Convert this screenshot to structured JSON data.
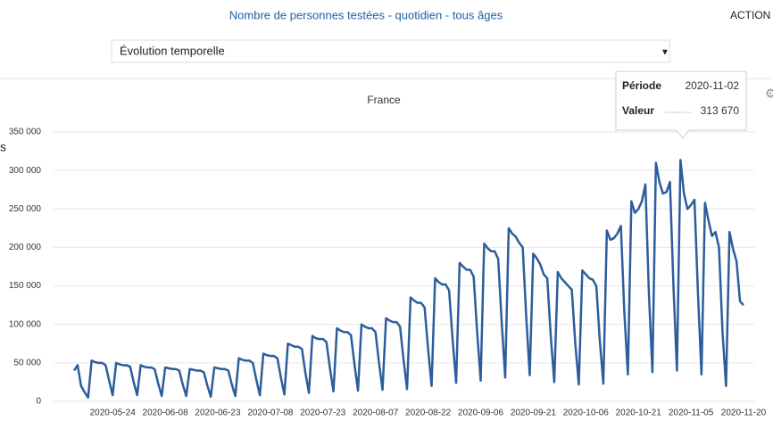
{
  "header": {
    "title": "Nombre de personnes testées - quotidien - tous âges",
    "action": "ACTION"
  },
  "dropdown": {
    "selected": "Évolution temporelle"
  },
  "side_text": "s",
  "tooltip": {
    "period_label": "Période",
    "period": "2020-11-02",
    "value_label": "Valeur",
    "value": "313 670"
  },
  "chart_data": {
    "type": "line",
    "title": "France",
    "color": "#2c5d9c",
    "grid": true,
    "ylim": [
      0,
      350000
    ],
    "yticks": [
      0,
      {
        "value": 50000,
        "label": "50 000"
      },
      {
        "value": 100000,
        "label": "100 000"
      },
      {
        "value": 150000,
        "label": "150 000"
      },
      {
        "value": 200000,
        "label": "200 000"
      },
      {
        "value": 250000,
        "label": "250 000"
      },
      {
        "value": 300000,
        "label": "300 000"
      },
      {
        "value": 350000,
        "label": "350 000"
      }
    ],
    "categories": [
      null,
      null,
      null,
      null,
      null,
      null,
      null,
      null,
      null,
      null,
      null,
      "2020-05-24",
      null,
      null,
      null,
      null,
      null,
      null,
      null,
      null,
      null,
      null,
      null,
      null,
      null,
      null,
      "2020-06-08",
      null,
      null,
      null,
      null,
      null,
      null,
      null,
      null,
      null,
      null,
      null,
      null,
      null,
      null,
      "2020-06-23",
      null,
      null,
      null,
      null,
      null,
      null,
      null,
      null,
      null,
      null,
      null,
      null,
      null,
      null,
      "2020-07-08",
      null,
      null,
      null,
      null,
      null,
      null,
      null,
      null,
      null,
      null,
      null,
      null,
      null,
      null,
      "2020-07-23",
      null,
      null,
      null,
      null,
      null,
      null,
      null,
      null,
      null,
      null,
      null,
      null,
      null,
      null,
      "2020-08-07",
      null,
      null,
      null,
      null,
      null,
      null,
      null,
      null,
      null,
      null,
      null,
      null,
      null,
      null,
      "2020-08-22",
      null,
      null,
      null,
      null,
      null,
      null,
      null,
      null,
      null,
      null,
      null,
      null,
      null,
      null,
      "2020-09-06",
      null,
      null,
      null,
      null,
      null,
      null,
      null,
      null,
      null,
      null,
      null,
      null,
      null,
      null,
      "2020-09-21",
      null,
      null,
      null,
      null,
      null,
      null,
      null,
      null,
      null,
      null,
      null,
      null,
      null,
      null,
      "2020-10-06",
      null,
      null,
      null,
      null,
      null,
      null,
      null,
      null,
      null,
      null,
      null,
      null,
      null,
      null,
      "2020-10-21",
      null,
      null,
      null,
      null,
      null,
      null,
      null,
      null,
      null,
      null,
      null,
      null,
      null,
      null,
      "2020-11-05",
      null,
      null,
      null,
      null,
      null,
      null,
      null,
      null,
      null,
      null,
      null,
      null,
      null,
      null,
      "2020-11-20"
    ],
    "values": [
      40000,
      47000,
      20000,
      12000,
      5000,
      53000,
      51000,
      50000,
      50000,
      47000,
      27000,
      8000,
      50000,
      48000,
      47000,
      47000,
      45000,
      25000,
      8000,
      47000,
      45000,
      44000,
      44000,
      42000,
      23000,
      7000,
      44000,
      43000,
      42000,
      42000,
      40000,
      22000,
      7000,
      42000,
      41000,
      40000,
      40000,
      38000,
      21000,
      6000,
      44000,
      43000,
      42000,
      42000,
      40000,
      22000,
      7000,
      56000,
      54000,
      53000,
      53000,
      50000,
      28000,
      8000,
      62000,
      60000,
      59000,
      59000,
      56000,
      31000,
      9000,
      75000,
      73000,
      71000,
      71000,
      68000,
      37000,
      11000,
      85000,
      82000,
      81000,
      81000,
      77000,
      43000,
      13000,
      95000,
      92000,
      90000,
      90000,
      86000,
      48000,
      14000,
      100000,
      97000,
      95000,
      95000,
      90000,
      50000,
      15000,
      108000,
      105000,
      103000,
      103000,
      97000,
      54000,
      16000,
      135000,
      131000,
      128000,
      128000,
      122000,
      68000,
      20000,
      160000,
      155000,
      152000,
      152000,
      144000,
      80000,
      24000,
      180000,
      175000,
      171000,
      171000,
      162000,
      90000,
      27000,
      205000,
      199000,
      195000,
      195000,
      185000,
      103000,
      31000,
      225000,
      218000,
      214000,
      206000,
      200000,
      110000,
      34000,
      192000,
      186000,
      178000,
      165000,
      160000,
      85000,
      25000,
      168000,
      160000,
      155000,
      150000,
      145000,
      75000,
      22000,
      170000,
      165000,
      160000,
      158000,
      150000,
      78000,
      23000,
      222000,
      210000,
      212000,
      218000,
      228000,
      115000,
      35000,
      260000,
      245000,
      250000,
      260000,
      282000,
      140000,
      38000,
      310000,
      285000,
      270000,
      272000,
      285000,
      150000,
      40000,
      313670,
      270000,
      250000,
      255000,
      262000,
      140000,
      35000,
      258000,
      235000,
      215000,
      220000,
      200000,
      90000,
      20000,
      220000,
      198000,
      182000,
      130000,
      125000
    ]
  }
}
